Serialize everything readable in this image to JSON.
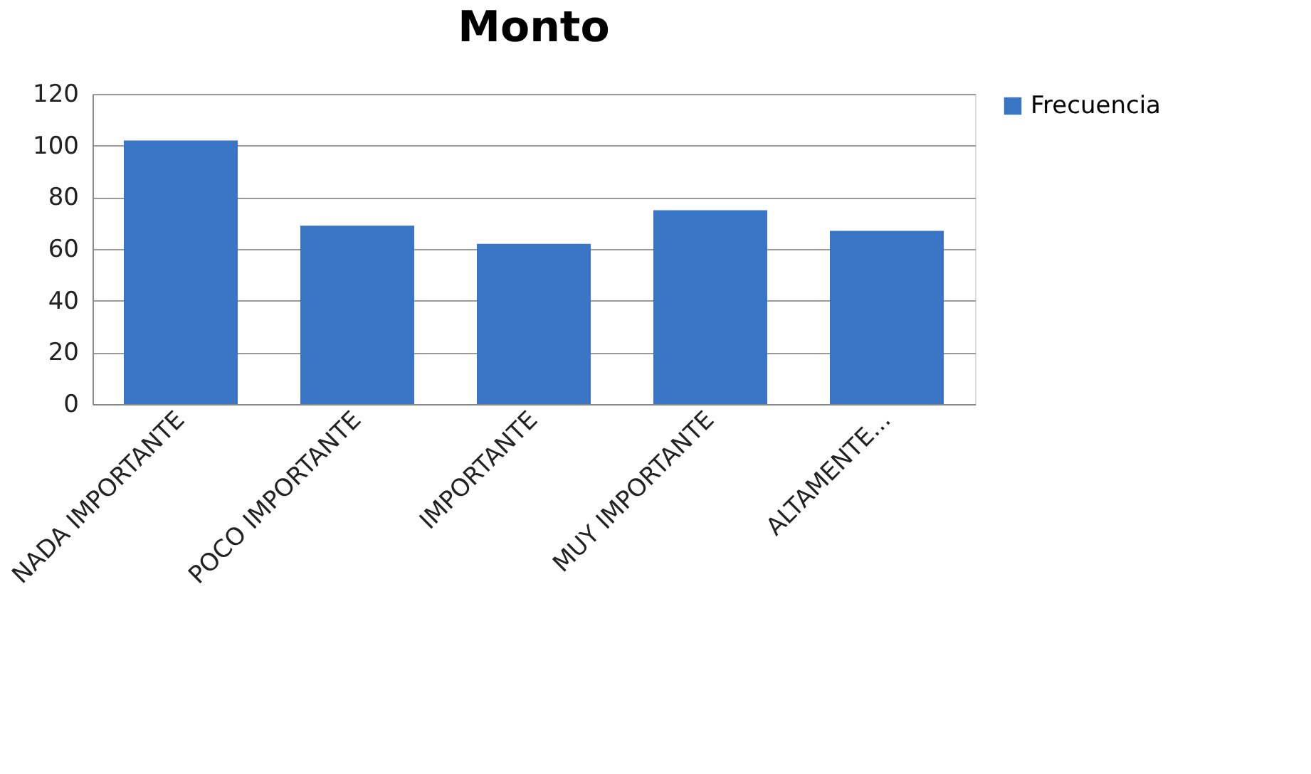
{
  "chart_data": {
    "type": "bar",
    "title": "Monto",
    "categories": [
      "NADA IMPORTANTE",
      "POCO IMPORTANTE",
      "IMPORTANTE",
      "MUY IMPORTANTE",
      "ALTAMENTE..."
    ],
    "series": [
      {
        "name": "Frecuencia",
        "color": "#3a74c4",
        "values": [
          102,
          69,
          62,
          75,
          67
        ]
      }
    ],
    "ylim": [
      0,
      120
    ],
    "yticks": [
      0,
      20,
      40,
      60,
      80,
      100,
      120
    ],
    "grid": "y",
    "legend": "right"
  }
}
